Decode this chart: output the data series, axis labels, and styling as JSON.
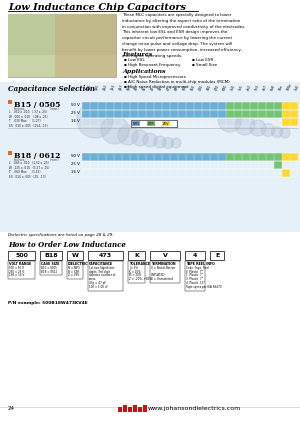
{
  "title": "Low Inductance Chip Capacitors",
  "page_bg": "#ffffff",
  "page_number": "24",
  "website": "www.johansondielectrics.com",
  "description_text": [
    "These MLC capacitors are specially designed to lower",
    "inductance by altering the aspect ratio of the termination",
    "in conjunction with improved conductivity of the electrodes.",
    "This inherent low ESL and ESR design improves the",
    "capacitor circuit performance by lowering the current",
    "change noise pulse and voltage drop. The system will",
    "benefit by lower power consumption, increased efficiency,",
    "and higher operating speeds."
  ],
  "features_title": "Features",
  "features_col1": [
    "Low ESL",
    "High Resonant Frequency"
  ],
  "features_col2": [
    "Low ESR",
    "Small Size"
  ],
  "applications_title": "Applications",
  "applications": [
    "High Speed Microprocessors",
    "A/C Noise Reduction in multi-chip modules (MCM)",
    "High speed digital equipment"
  ],
  "cap_selection_title": "Capacitance Selection",
  "series": [
    {
      "name": "B15 / 0505",
      "voltages": [
        "50 V",
        "25 V",
        "16 V"
      ],
      "dims": [
        "L   .050 x .010   (.37 x .25)",
        "W  .060 x .010   (.08 x .25)",
        "T   .030 Max      (1.27)",
        "ES  .010 x .005  (.254, .13)"
      ],
      "bar_50": [
        1,
        1,
        1,
        1,
        1,
        1,
        1,
        1,
        1,
        1,
        1,
        1,
        1,
        1,
        1,
        1,
        1,
        1,
        2,
        2,
        2,
        2,
        2,
        2,
        2,
        3,
        3
      ],
      "bar_25": [
        1,
        1,
        1,
        1,
        1,
        1,
        1,
        1,
        1,
        1,
        1,
        1,
        1,
        1,
        1,
        1,
        1,
        1,
        2,
        2,
        2,
        2,
        2,
        2,
        2,
        3,
        3
      ],
      "bar_16": [
        0,
        0,
        0,
        0,
        0,
        0,
        0,
        0,
        0,
        0,
        0,
        0,
        0,
        0,
        0,
        0,
        0,
        0,
        0,
        0,
        0,
        0,
        0,
        0,
        0,
        3,
        3
      ]
    },
    {
      "name": "B18 / 0612",
      "voltages": [
        "50 V",
        "25 V",
        "16 V"
      ],
      "dims": [
        "L   .065 x .010   (1.52 x .25)",
        "W  .125 x .010   (3.17 x .25)",
        "T   .060 Max      (1.52)",
        "ES  .010 x .005  (.25, .13)"
      ],
      "bar_50": [
        1,
        1,
        1,
        1,
        1,
        1,
        1,
        1,
        1,
        1,
        1,
        1,
        1,
        1,
        1,
        1,
        1,
        1,
        2,
        2,
        2,
        2,
        2,
        2,
        2,
        3,
        3
      ],
      "bar_25": [
        0,
        0,
        0,
        0,
        0,
        0,
        0,
        0,
        0,
        0,
        0,
        0,
        0,
        0,
        0,
        0,
        0,
        0,
        0,
        0,
        0,
        0,
        0,
        0,
        2,
        0,
        0
      ],
      "bar_16": [
        0,
        0,
        0,
        0,
        0,
        0,
        0,
        0,
        0,
        0,
        0,
        0,
        0,
        0,
        0,
        0,
        0,
        0,
        0,
        0,
        0,
        0,
        0,
        0,
        0,
        3,
        0
      ]
    }
  ],
  "col_labels": [
    "1p0",
    "1p5",
    "2p2",
    "3p3",
    "4p7",
    "6p8",
    "10",
    "15",
    "22",
    "33",
    "47",
    "68",
    "100",
    "150",
    "220",
    "330",
    "470",
    "680",
    "1n0",
    "1n5",
    "2n2",
    "3n3",
    "4n7",
    "6n8",
    "10n",
    "100n",
    "1u0"
  ],
  "bar_colors": [
    "#ffffff",
    "#6baed6",
    "#74c476",
    "#fdd835"
  ],
  "legend_items": [
    {
      "color": "#6baed6",
      "label": "NPO"
    },
    {
      "color": "#74c476",
      "label": "X7R"
    },
    {
      "color": "#fdd835",
      "label": "Z5V"
    }
  ],
  "dielectric_note": "Dielectric specifications are listed on page 28 & 29.",
  "order_title": "How to Order Low Inductance",
  "box_labels": [
    "500",
    "B18",
    "W",
    "473",
    "K",
    "V",
    "4",
    "E"
  ],
  "box_desc_titles": [
    "VOLT RANGE",
    "CASE SIZE",
    "DIELECTRIC",
    "CAPACITANCE",
    "TOLERANCE",
    "TERMINATION",
    "TAPE REEL INFO",
    ""
  ],
  "box_descs": [
    "500 = 50 V\n250 = 25 V\n160 = 16 V",
    "B15 = 0505\nB18 = 0612",
    "N = NPO\nB = X5R\nZ = X5V",
    "1st two Significant\ndigits, 3rd digit\ndenotes number of\nzeros.\n47p = 47 pF\n100 = 1.00 uF",
    "J = 5%\nK = 10%\nM = 20%\nZ = -20%, +80%",
    "V = Nickel Barrier\n\nUNPLATED\nX = Unmatched",
    "Code  Tape  Reel\n0  Plastic  7\"\n1  Plastic  7\"\n3  Plastic  7\"\n4  Plastic  13\"\nTape specs per EIA RS470",
    ""
  ],
  "pn_example": "P/N example: 500B18W473KV4E",
  "img_color": "#b8c8a0",
  "section_bg": "#ddeeff",
  "watermark_color": "#aabbd0"
}
